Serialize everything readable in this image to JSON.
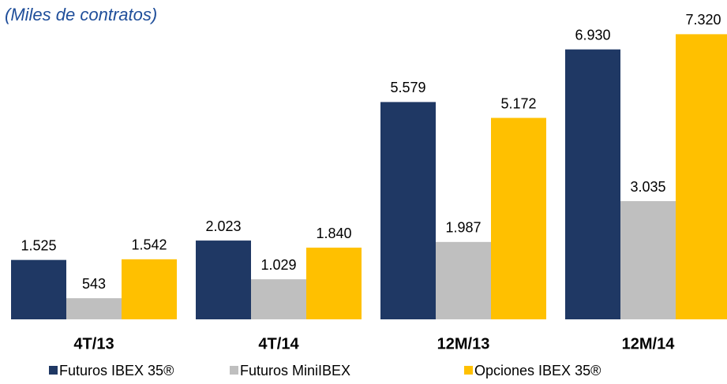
{
  "chart_data": {
    "type": "bar",
    "title": "(Miles de contratos)",
    "categories": [
      "4T/13",
      "4T/14",
      "12M/13",
      "12M/14"
    ],
    "series": [
      {
        "name": "Futuros IBEX 35®",
        "color": "#1f3864",
        "values": [
          1525,
          2023,
          5579,
          6930
        ],
        "value_labels": [
          "1.525",
          "2.023",
          "5.579",
          "6.930"
        ]
      },
      {
        "name": "Futuros MiniIBEX",
        "color": "#bfbfbf",
        "values": [
          543,
          1029,
          1987,
          3035
        ],
        "value_labels": [
          "543",
          "1.029",
          "1.987",
          "3.035"
        ]
      },
      {
        "name": "Opciones IBEX 35®",
        "color": "#ffc000",
        "values": [
          1542,
          1840,
          5172,
          7320
        ],
        "value_labels": [
          "1.542",
          "1.840",
          "5.172",
          "7.320"
        ]
      }
    ]
  }
}
